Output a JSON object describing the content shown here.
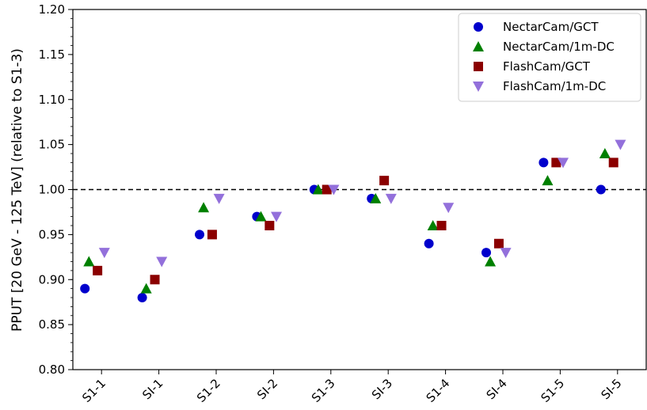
{
  "chart_data": {
    "type": "scatter",
    "categories": [
      "S1-1",
      "SI-1",
      "S1-2",
      "SI-2",
      "S1-3",
      "SI-3",
      "S1-4",
      "SI-4",
      "S1-5",
      "SI-5"
    ],
    "series": [
      {
        "name": "NectarCam/GCT",
        "marker": "circle",
        "color": "#0000cc",
        "values": [
          0.89,
          0.88,
          0.95,
          0.97,
          1.0,
          0.99,
          0.94,
          0.93,
          1.03,
          1.0
        ]
      },
      {
        "name": "NectarCam/1m-DC",
        "marker": "triangle-up",
        "color": "#008000",
        "values": [
          0.92,
          0.89,
          0.98,
          0.97,
          1.0,
          0.99,
          0.96,
          0.92,
          1.01,
          1.04
        ]
      },
      {
        "name": "FlashCam/GCT",
        "marker": "square",
        "color": "#8b0000",
        "values": [
          0.91,
          0.9,
          0.95,
          0.96,
          1.0,
          1.01,
          0.96,
          0.94,
          1.03,
          1.03
        ]
      },
      {
        "name": "FlashCam/1m-DC",
        "marker": "triangle-down",
        "color": "#9370db",
        "values": [
          0.93,
          0.92,
          0.99,
          0.97,
          1.0,
          0.99,
          0.98,
          0.93,
          1.03,
          1.05
        ]
      }
    ],
    "ylabel": "PPUT [20 GeV - 125 TeV] (relative to S1-3)",
    "xlabel": "",
    "ylim": [
      0.8,
      1.2
    ],
    "yticks": [
      "0.80",
      "0.85",
      "0.90",
      "0.95",
      "1.00",
      "1.05",
      "1.10",
      "1.15",
      "1.20"
    ],
    "reference_line": {
      "y": 1.0,
      "style": "dashed",
      "color": "#000000"
    },
    "legend_position": "top-right",
    "grid": false
  }
}
